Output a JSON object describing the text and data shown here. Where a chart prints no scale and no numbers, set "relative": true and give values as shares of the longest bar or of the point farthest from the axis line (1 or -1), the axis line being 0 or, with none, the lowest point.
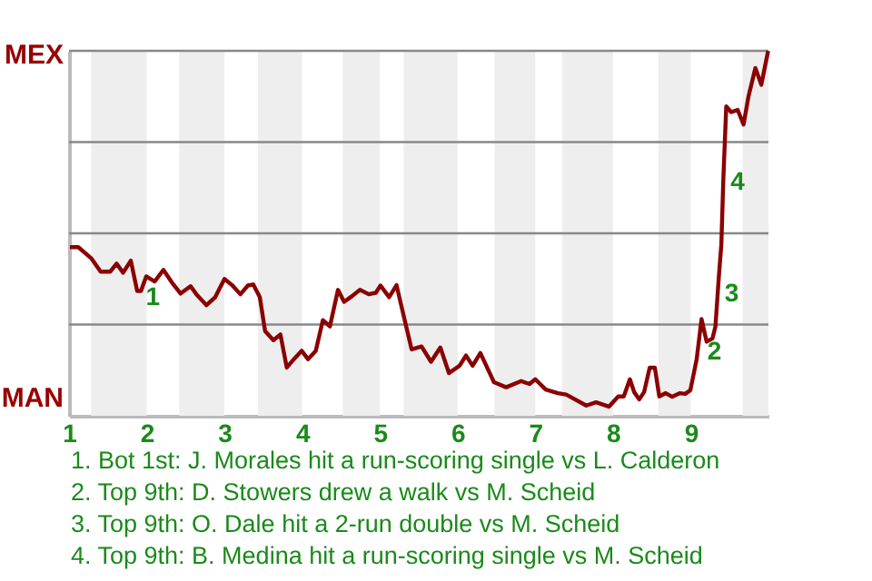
{
  "chart_data": {
    "type": "line",
    "relative": true,
    "x": [
      1.012,
      1.119,
      1.284,
      1.407,
      1.531,
      1.612,
      1.696,
      1.795,
      1.877,
      1.926,
      1.993,
      2.103,
      2.214,
      2.325,
      2.436,
      2.564,
      2.639,
      2.769,
      2.881,
      3.0,
      3.098,
      3.205,
      3.302,
      3.37,
      3.455,
      3.523,
      3.63,
      3.72,
      3.802,
      3.893,
      3.993,
      4.075,
      4.175,
      4.266,
      4.357,
      4.461,
      4.539,
      4.643,
      4.743,
      4.857,
      4.948,
      5.008,
      5.119,
      5.214,
      5.286,
      5.408,
      5.536,
      5.658,
      5.778,
      5.889,
      6.025,
      6.108,
      6.193,
      6.293,
      6.468,
      6.625,
      6.818,
      6.925,
      7.0,
      7.134,
      7.291,
      7.397,
      7.656,
      7.781,
      7.947,
      8.067,
      8.138,
      8.217,
      8.272,
      8.338,
      8.4,
      8.472,
      8.538,
      8.595,
      8.678,
      8.762,
      8.862,
      8.928,
      8.995,
      9.076,
      9.139,
      9.204,
      9.28,
      9.318,
      9.362,
      9.394,
      9.419,
      9.457,
      9.52,
      9.604,
      9.68,
      9.743,
      9.832,
      9.908,
      9.996
    ],
    "series": [
      {
        "color": "#8b0000",
        "values": [
          0.462,
          0.462,
          0.432,
          0.395,
          0.395,
          0.417,
          0.392,
          0.425,
          0.342,
          0.342,
          0.382,
          0.368,
          0.4,
          0.365,
          0.335,
          0.355,
          0.333,
          0.303,
          0.325,
          0.375,
          0.358,
          0.333,
          0.357,
          0.36,
          0.325,
          0.232,
          0.207,
          0.223,
          0.132,
          0.155,
          0.178,
          0.155,
          0.178,
          0.262,
          0.245,
          0.345,
          0.312,
          0.328,
          0.345,
          0.333,
          0.337,
          0.357,
          0.325,
          0.358,
          0.292,
          0.182,
          0.19,
          0.148,
          0.187,
          0.117,
          0.137,
          0.165,
          0.137,
          0.172,
          0.092,
          0.078,
          0.095,
          0.087,
          0.1,
          0.072,
          0.062,
          0.058,
          0.028,
          0.037,
          0.025,
          0.053,
          0.053,
          0.1,
          0.065,
          0.045,
          0.065,
          0.132,
          0.132,
          0.053,
          0.062,
          0.052,
          0.062,
          0.06,
          0.07,
          0.155,
          0.265,
          0.203,
          0.212,
          0.245,
          0.382,
          0.47,
          0.645,
          0.848,
          0.832,
          0.838,
          0.798,
          0.875,
          0.953,
          0.907,
          1.0
        ]
      }
    ],
    "xlim": [
      1,
      10
    ],
    "xticks": [
      1,
      2,
      3,
      4,
      5,
      6,
      7,
      8,
      9
    ],
    "marker": "none",
    "grid": "y",
    "bands": [
      {
        "axis": "x",
        "from": 1.284,
        "to": 2,
        "color": "#eeeeee"
      },
      {
        "axis": "x",
        "from": 2.417,
        "to": 3,
        "color": "#eeeeee"
      },
      {
        "axis": "x",
        "from": 3.432,
        "to": 4,
        "color": "#eeeeee"
      },
      {
        "axis": "x",
        "from": 4.523,
        "to": 5,
        "color": "#eeeeee"
      },
      {
        "axis": "x",
        "from": 5.306,
        "to": 6,
        "color": "#eeeeee"
      },
      {
        "axis": "x",
        "from": 6.475,
        "to": 7,
        "color": "#eeeeee"
      },
      {
        "axis": "x",
        "from": 7.344,
        "to": 8,
        "color": "#eeeeee"
      },
      {
        "axis": "x",
        "from": 8.583,
        "to": 9,
        "color": "#eeeeee"
      },
      {
        "axis": "x",
        "from": 9.667,
        "to": 10,
        "color": "#eeeeee"
      }
    ],
    "annotations": [
      "MEX",
      "MAN",
      {
        "text": "1",
        "x": 2.008,
        "y": 0.353
      },
      {
        "text": "2",
        "x": 9.234,
        "y": 0.205
      },
      {
        "text": "3",
        "x": 9.457,
        "y": 0.362
      },
      {
        "text": "4",
        "x": 9.533,
        "y": 0.67
      },
      "1. Bot 1st: J. Morales hit a run-scoring single vs L. Calderon",
      "2. Top 9th: D. Stowers drew a walk vs M. Scheid",
      "3. Top 9th: O. Dale hit a 2-run double vs M. Scheid",
      "4. Top 9th: B. Medina hit a run-scoring single vs M. Scheid"
    ]
  }
}
